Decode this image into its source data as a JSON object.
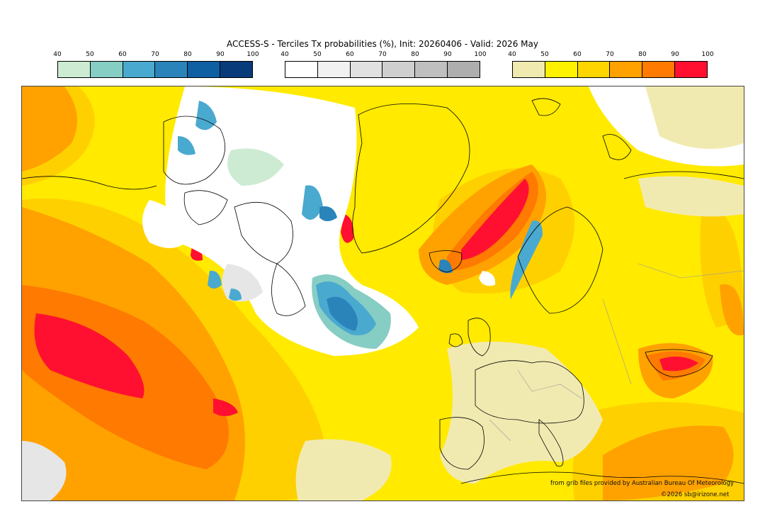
{
  "title": "ACCESS-S - Terciles Tx probabilities (%), Init: 20260406 - Valid: 2026 May",
  "colorbars": [
    {
      "ticks": [
        "40",
        "50",
        "60",
        "70",
        "80",
        "90",
        "100"
      ],
      "colors": [
        "#cdebd2",
        "#86cdc4",
        "#4aa9cf",
        "#2a84ba",
        "#0f5fa3",
        "#083b7a"
      ]
    },
    {
      "ticks": [
        "40",
        "50",
        "60",
        "70",
        "80",
        "90",
        "100"
      ],
      "colors": [
        "#ffffff",
        "#f1f1f1",
        "#e1e1e1",
        "#cfcfcf",
        "#bfbfbf",
        "#aeaeae"
      ]
    },
    {
      "ticks": [
        "40",
        "50",
        "60",
        "70",
        "80",
        "90",
        "100"
      ],
      "colors": [
        "#f1eab0",
        "#fff200",
        "#ffd500",
        "#ffa200",
        "#ff7a00",
        "#ff1030"
      ]
    }
  ],
  "credits": {
    "source": "from grib files provided by Australian Bureau Of Meteorology",
    "copyright": "©2026 sb@irizone.net"
  }
}
